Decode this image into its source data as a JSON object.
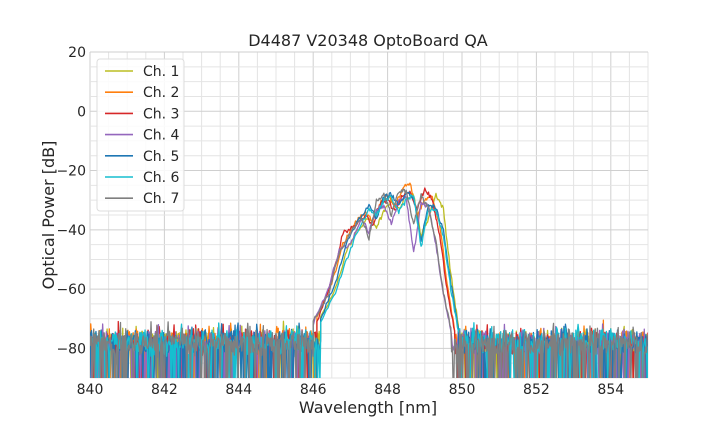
{
  "chart_data": {
    "type": "line",
    "title": "D4487 V20348 OptoBoard QA",
    "xlabel": "Wavelength [nm]",
    "ylabel": "Optical Power [dB]",
    "xlim": [
      840,
      855
    ],
    "ylim": [
      -90,
      20
    ],
    "xticks": [
      840,
      842,
      844,
      846,
      848,
      850,
      852,
      854
    ],
    "yticks": [
      -80,
      -60,
      -40,
      -20,
      0,
      20
    ],
    "xtick_labels": [
      "840",
      "842",
      "844",
      "846",
      "848",
      "850",
      "852",
      "854"
    ],
    "ytick_labels": [
      "−80",
      "−60",
      "−40",
      "−20",
      "0",
      "20"
    ],
    "grid": true,
    "legend_position": "upper-left",
    "noise_floor_db": -75,
    "series": [
      {
        "name": "Ch. 1",
        "color": "#bcbd22",
        "points": [
          [
            846.2,
            -70
          ],
          [
            846.6,
            -60
          ],
          [
            846.9,
            -47
          ],
          [
            847.2,
            -40
          ],
          [
            847.5,
            -36
          ],
          [
            847.7,
            -39
          ],
          [
            847.9,
            -34
          ],
          [
            848.1,
            -30
          ],
          [
            848.3,
            -33
          ],
          [
            848.5,
            -29
          ],
          [
            848.7,
            -28
          ],
          [
            848.9,
            -42
          ],
          [
            849.1,
            -36
          ],
          [
            849.3,
            -28
          ],
          [
            849.5,
            -33
          ],
          [
            849.7,
            -55
          ],
          [
            849.9,
            -72
          ]
        ]
      },
      {
        "name": "Ch. 2",
        "color": "#ff7f0e",
        "points": [
          [
            846.1,
            -70
          ],
          [
            846.5,
            -58
          ],
          [
            846.8,
            -45
          ],
          [
            847.1,
            -38
          ],
          [
            847.4,
            -34
          ],
          [
            847.6,
            -37
          ],
          [
            847.8,
            -31
          ],
          [
            848.0,
            -28
          ],
          [
            848.2,
            -32
          ],
          [
            848.4,
            -26
          ],
          [
            848.6,
            -24
          ],
          [
            848.8,
            -35
          ],
          [
            849.0,
            -30
          ],
          [
            849.2,
            -29
          ],
          [
            849.4,
            -38
          ],
          [
            849.6,
            -58
          ],
          [
            849.8,
            -74
          ]
        ]
      },
      {
        "name": "Ch. 3",
        "color": "#d62728",
        "points": [
          [
            846.1,
            -71
          ],
          [
            846.5,
            -57
          ],
          [
            846.8,
            -41
          ],
          [
            847.1,
            -39
          ],
          [
            847.4,
            -35
          ],
          [
            847.6,
            -39
          ],
          [
            847.8,
            -31
          ],
          [
            848.0,
            -30
          ],
          [
            848.2,
            -34
          ],
          [
            848.4,
            -28
          ],
          [
            848.6,
            -27
          ],
          [
            848.8,
            -33
          ],
          [
            849.0,
            -26
          ],
          [
            849.2,
            -30
          ],
          [
            849.4,
            -42
          ],
          [
            849.6,
            -60
          ],
          [
            849.8,
            -74
          ]
        ]
      },
      {
        "name": "Ch. 4",
        "color": "#9467bd",
        "points": [
          [
            846.0,
            -72
          ],
          [
            846.4,
            -60
          ],
          [
            846.7,
            -47
          ],
          [
            847.0,
            -45
          ],
          [
            847.3,
            -36
          ],
          [
            847.5,
            -41
          ],
          [
            847.7,
            -33
          ],
          [
            847.9,
            -32
          ],
          [
            848.1,
            -38
          ],
          [
            848.3,
            -30
          ],
          [
            848.5,
            -29
          ],
          [
            848.7,
            -48
          ],
          [
            848.9,
            -31
          ],
          [
            849.1,
            -32
          ],
          [
            849.3,
            -45
          ],
          [
            849.5,
            -62
          ],
          [
            849.7,
            -74
          ]
        ]
      },
      {
        "name": "Ch. 5",
        "color": "#1f77b4",
        "points": [
          [
            846.2,
            -70
          ],
          [
            846.6,
            -58
          ],
          [
            846.9,
            -44
          ],
          [
            847.2,
            -37
          ],
          [
            847.5,
            -32
          ],
          [
            847.7,
            -36
          ],
          [
            847.9,
            -29
          ],
          [
            848.1,
            -28
          ],
          [
            848.3,
            -32
          ],
          [
            848.5,
            -27
          ],
          [
            848.7,
            -29
          ],
          [
            848.9,
            -44
          ],
          [
            849.1,
            -31
          ],
          [
            849.3,
            -33
          ],
          [
            849.5,
            -40
          ],
          [
            849.7,
            -58
          ],
          [
            849.9,
            -73
          ]
        ]
      },
      {
        "name": "Ch. 6",
        "color": "#17becf",
        "points": [
          [
            846.2,
            -71
          ],
          [
            846.6,
            -61
          ],
          [
            846.9,
            -50
          ],
          [
            847.2,
            -40
          ],
          [
            847.5,
            -33
          ],
          [
            847.7,
            -35
          ],
          [
            847.9,
            -30
          ],
          [
            848.1,
            -29
          ],
          [
            848.3,
            -34
          ],
          [
            848.5,
            -30
          ],
          [
            848.7,
            -28
          ],
          [
            848.9,
            -46
          ],
          [
            849.1,
            -33
          ],
          [
            849.3,
            -34
          ],
          [
            849.5,
            -42
          ],
          [
            849.7,
            -60
          ],
          [
            849.9,
            -74
          ]
        ]
      },
      {
        "name": "Ch. 7",
        "color": "#7f7f7f",
        "points": [
          [
            846.0,
            -71
          ],
          [
            846.4,
            -62
          ],
          [
            846.7,
            -48
          ],
          [
            847.0,
            -41
          ],
          [
            847.3,
            -36
          ],
          [
            847.5,
            -43
          ],
          [
            847.7,
            -30
          ],
          [
            847.9,
            -28
          ],
          [
            848.1,
            -35
          ],
          [
            848.3,
            -27
          ],
          [
            848.5,
            -27
          ],
          [
            848.7,
            -38
          ],
          [
            848.9,
            -28
          ],
          [
            849.1,
            -33
          ],
          [
            849.3,
            -44
          ],
          [
            849.5,
            -61
          ],
          [
            849.7,
            -73
          ]
        ]
      }
    ]
  }
}
